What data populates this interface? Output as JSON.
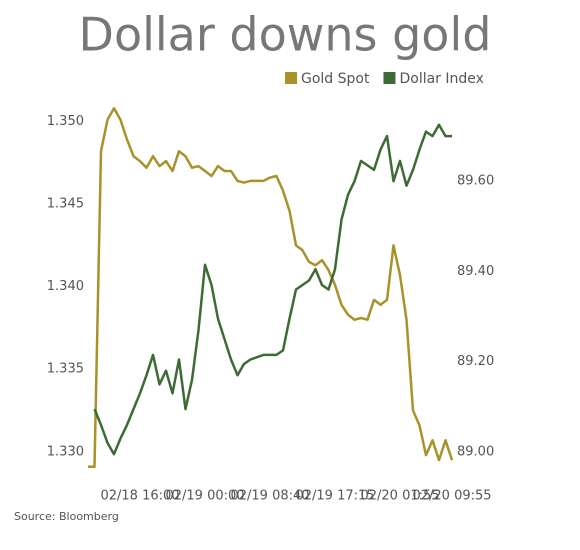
{
  "chart_data": {
    "type": "line",
    "title": "Dollar downs gold",
    "source": "Source: Bloomberg",
    "x": [
      null,
      null,
      null,
      null,
      null,
      null,
      null,
      null,
      "02/18 16:00",
      null,
      null,
      null,
      null,
      null,
      null,
      null,
      null,
      null,
      "02/19 00:00",
      null,
      null,
      null,
      null,
      null,
      null,
      null,
      null,
      null,
      "02/19 08:40",
      null,
      null,
      null,
      null,
      null,
      null,
      null,
      null,
      null,
      "02/19 17:15",
      null,
      null,
      null,
      null,
      null,
      null,
      null,
      null,
      null,
      "02/20 01:55",
      null,
      null,
      null,
      null,
      null,
      null,
      null,
      "02/20 09:55"
    ],
    "series": [
      {
        "name": "Gold Spot",
        "color": "#a8922a",
        "axis": "y",
        "values": [
          1.3291,
          1.3291,
          1.3482,
          1.3501,
          1.3508,
          1.3501,
          1.3489,
          1.3479,
          1.3476,
          1.3472,
          1.3479,
          1.3473,
          1.3476,
          1.347,
          1.3482,
          1.3479,
          1.3472,
          1.3473,
          1.347,
          1.3467,
          1.3473,
          1.347,
          1.347,
          1.3464,
          1.3463,
          1.3464,
          1.3464,
          1.3464,
          1.3466,
          1.3467,
          1.3458,
          1.3446,
          1.3425,
          1.3422,
          1.3415,
          1.3413,
          1.3416,
          1.341,
          1.3401,
          1.3389,
          1.3383,
          1.338,
          1.3381,
          1.338,
          1.3392,
          1.3389,
          1.3392,
          1.3425,
          1.3407,
          1.338,
          1.3325,
          1.3316,
          1.3298,
          1.3307,
          1.3295,
          1.3307,
          1.3295
        ]
      },
      {
        "name": "Dollar Index",
        "color": "#3e6b35",
        "axis": "y2",
        "values": [
          null,
          89.095,
          89.06,
          89.02,
          88.995,
          89.03,
          89.06,
          89.095,
          89.13,
          89.17,
          89.215,
          89.15,
          89.18,
          89.13,
          89.205,
          89.095,
          89.16,
          89.27,
          89.415,
          89.37,
          89.295,
          89.25,
          89.205,
          89.17,
          89.195,
          89.205,
          89.21,
          89.215,
          89.215,
          89.215,
          89.225,
          89.295,
          89.36,
          89.37,
          89.38,
          89.405,
          89.37,
          89.36,
          89.405,
          89.515,
          89.57,
          89.6,
          89.645,
          89.635,
          89.625,
          89.67,
          89.7,
          89.6,
          89.645,
          89.59,
          89.625,
          89.67,
          89.71,
          89.7,
          89.725,
          89.7,
          89.7
        ]
      }
    ],
    "ylim": [
      1.3289,
      1.3513
    ],
    "yticks": [
      {
        "value": 1.33,
        "label": "1.330"
      },
      {
        "value": 1.335,
        "label": "1.335"
      },
      {
        "value": 1.34,
        "label": "1.340"
      },
      {
        "value": 1.345,
        "label": "1.345"
      },
      {
        "value": 1.35,
        "label": "1.350"
      }
    ],
    "y2lim": [
      88.96,
      89.78
    ],
    "y2ticks": [
      {
        "value": 89.0,
        "label": "89.00"
      },
      {
        "value": 89.2,
        "label": "89.20"
      },
      {
        "value": 89.4,
        "label": "89.40"
      },
      {
        "value": 89.6,
        "label": "89.60"
      }
    ],
    "legend": "top-right",
    "grid": false
  }
}
